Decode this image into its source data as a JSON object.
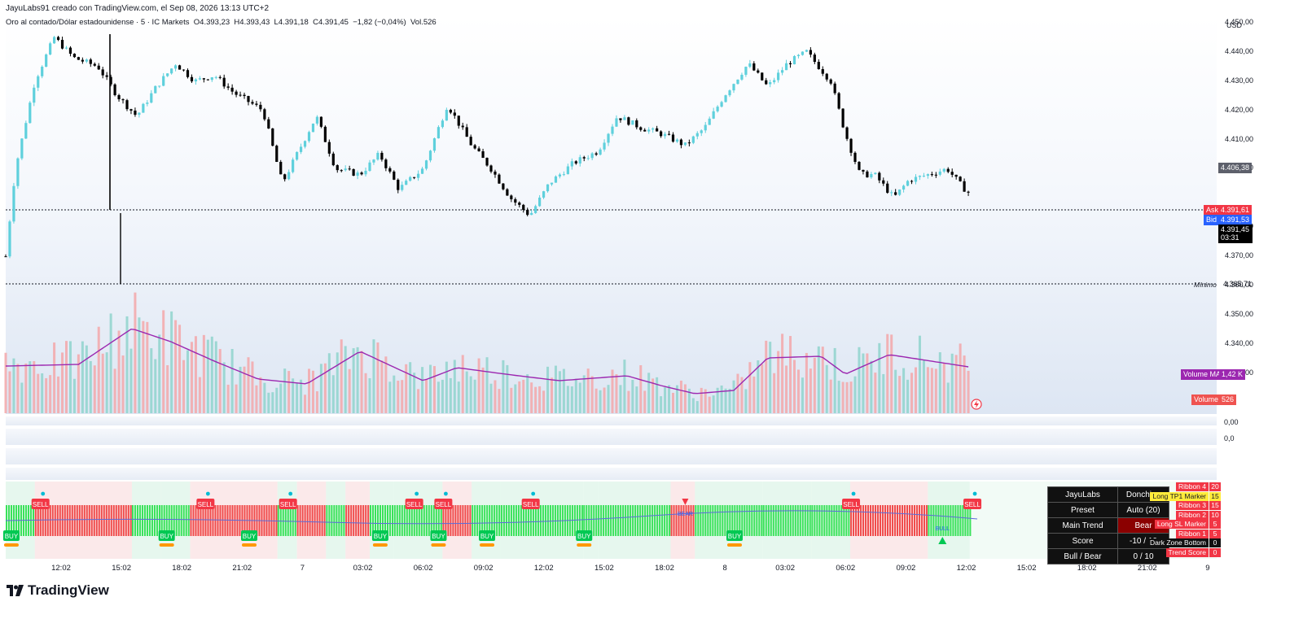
{
  "header": {
    "text": "JayuLabs91 creado con TradingView.com, el Sep 08, 2026 13:13 UTC+2"
  },
  "symbol_line": {
    "symbol": "Oro al contado/Dólar estadounidense · 5 · IC Markets",
    "open": "O4.393,23",
    "high": "H4.393,43",
    "low": "L4.391,18",
    "close": "C4.391,45",
    "change": "−1,82 (−0,04%)",
    "volume": "Vol.526"
  },
  "price_scale": {
    "currency": "USD",
    "ticks": [
      "4.450,00",
      "4.440,00",
      "4.430,00",
      "4.420,00",
      "4.410,00",
      "4.400,00",
      "4.380,00",
      "4.370,00",
      "4.360,00",
      "4.350,00",
      "4.340,00",
      "4.330,00"
    ],
    "high_marker": "4.406,38",
    "ask_tag": "Ask",
    "ask_value": "4.391,61",
    "bid_tag": "Bid",
    "bid_value": "4.391,53",
    "last_price": "4.391,45",
    "countdown": "03:31",
    "min_tag": "Mínimo",
    "min_value": "4.365,71",
    "volume_ma_tag": "Volume MA",
    "volume_ma_value": "1,42 K",
    "volume_tag": "Volume",
    "volume_value": "526",
    "osc1_value": "0,00",
    "osc2_value": "0,0"
  },
  "time_axis": [
    "12:02",
    "15:02",
    "18:02",
    "21:02",
    "7",
    "03:02",
    "06:02",
    "09:02",
    "12:02",
    "15:02",
    "18:02",
    "8",
    "03:02",
    "06:02",
    "09:02",
    "12:02",
    "15:02",
    "18:02",
    "21:02",
    "9"
  ],
  "signals": {
    "sell": "SELL",
    "buy": "BUY",
    "bear": "BEAR",
    "bull": "BULL"
  },
  "table": {
    "rows": [
      {
        "label": "JayuLabs",
        "value": "Donchian"
      },
      {
        "label": "Preset",
        "value": "Auto (20)"
      },
      {
        "label": "Main Trend",
        "value": "Bear"
      },
      {
        "label": "Score",
        "value": "-10 / 10"
      },
      {
        "label": "Bull / Bear",
        "value": "0 / 10"
      }
    ],
    "overlays": [
      {
        "label": "Ribbon 4",
        "value": "20"
      },
      {
        "label": "Long TP1 Marker",
        "value": "15"
      },
      {
        "label": "Ribbon 3",
        "value": "15"
      },
      {
        "label": "Ribbon 2",
        "value": "10"
      },
      {
        "label": "Long SL Marker",
        "value": "5"
      },
      {
        "label": "Ribbon 1",
        "value": "5"
      },
      {
        "label": "Dark Zone Bottom",
        "value": "0"
      },
      {
        "label": "Trend Score",
        "value": "0"
      }
    ]
  },
  "branding": {
    "logo_text": "TradingView"
  },
  "colors": {
    "up": "#26a69a",
    "up_light": "#5fd0dc",
    "down": "#000000",
    "ma": "#9c27b0",
    "sell": "#f23645",
    "buy": "#00c853",
    "ask": "#f23645",
    "bid": "#2962ff"
  },
  "chart_data": {
    "type": "candlestick",
    "title": "Oro al contado/Dólar estadounidense · 5 · IC Markets",
    "ylabel": "USD",
    "ylim": [
      4355,
      4455
    ],
    "x_range": [
      "Sep 06 12:02",
      "Sep 09 00:00"
    ],
    "close_path": [
      [
        0,
        4370
      ],
      [
        0.2,
        4400
      ],
      [
        0.6,
        4430
      ],
      [
        1.0,
        4445
      ],
      [
        1.4,
        4438
      ],
      [
        1.9,
        4435
      ],
      [
        2.3,
        4425
      ],
      [
        2.7,
        4418
      ],
      [
        3.1,
        4428
      ],
      [
        3.5,
        4436
      ],
      [
        3.9,
        4430
      ],
      [
        4.3,
        4432
      ],
      [
        4.7,
        4426
      ],
      [
        5.3,
        4420
      ],
      [
        5.7,
        4395
      ],
      [
        6.0,
        4405
      ],
      [
        6.4,
        4418
      ],
      [
        6.8,
        4400
      ],
      [
        7.3,
        4398
      ],
      [
        7.7,
        4405
      ],
      [
        8.1,
        4393
      ],
      [
        8.6,
        4400
      ],
      [
        9.1,
        4422
      ],
      [
        9.6,
        4408
      ],
      [
        10.0,
        4400
      ],
      [
        10.4,
        4390
      ],
      [
        10.8,
        4384
      ],
      [
        11.2,
        4395
      ],
      [
        11.7,
        4402
      ],
      [
        12.2,
        4406
      ],
      [
        12.6,
        4418
      ],
      [
        13.1,
        4414
      ],
      [
        13.5,
        4412
      ],
      [
        14.0,
        4408
      ],
      [
        14.4,
        4414
      ],
      [
        14.8,
        4425
      ],
      [
        15.3,
        4436
      ],
      [
        15.7,
        4428
      ],
      [
        16.1,
        4436
      ],
      [
        16.5,
        4440
      ],
      [
        17.0,
        4430
      ],
      [
        17.3,
        4412
      ],
      [
        17.6,
        4398
      ],
      [
        17.9,
        4398
      ],
      [
        18.3,
        4390
      ],
      [
        18.6,
        4396
      ],
      [
        19.0,
        4398
      ],
      [
        19.4,
        4400
      ],
      [
        19.7,
        4394
      ],
      [
        19.86,
        4391.45
      ]
    ],
    "last": 4391.45,
    "session_low": 4365.71,
    "volume_ma_last": 1420,
    "volume_last": 526
  }
}
